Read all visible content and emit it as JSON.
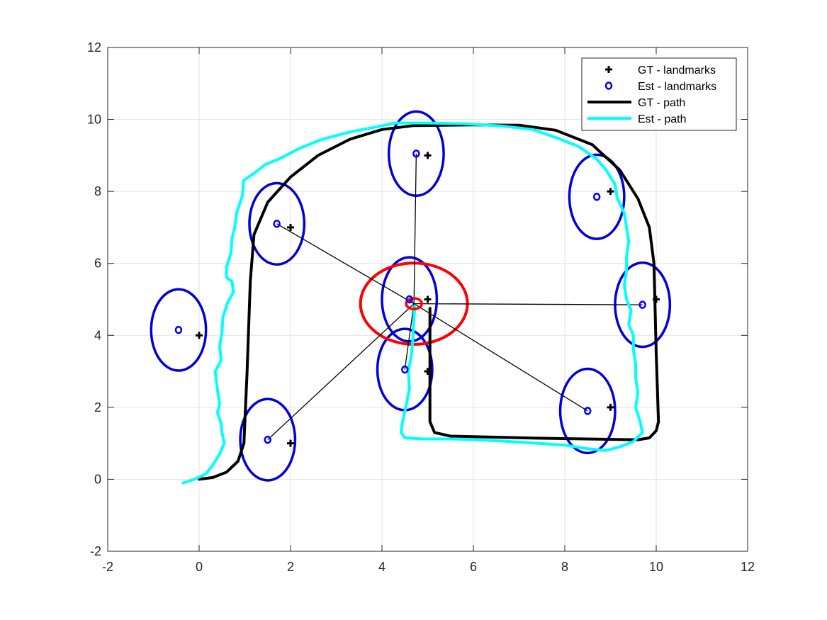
{
  "chart_data": {
    "type": "scatter",
    "title": "",
    "xlabel": "",
    "ylabel": "",
    "xlim": [
      -2,
      12
    ],
    "ylim": [
      -2,
      12
    ],
    "xticks": [
      -2,
      0,
      2,
      4,
      6,
      8,
      10,
      12
    ],
    "yticks": [
      -2,
      0,
      2,
      4,
      6,
      8,
      10,
      12
    ],
    "grid": true,
    "legend_position": "top-right",
    "colors": {
      "gt_landmark": "#000000",
      "est_landmark": "#0000ff",
      "gt_path": "#000000",
      "est_path": "#00ffff",
      "uncertainty": "#0000dd",
      "robot": "#ff0000",
      "observation": "#000000"
    },
    "legend": [
      {
        "label": "GT - landmarks",
        "marker": "plus",
        "color": "#000000"
      },
      {
        "label": "Est - landmarks",
        "marker": "circle",
        "color": "#0000ff"
      },
      {
        "label": "GT - path",
        "marker": "line",
        "color": "#000000"
      },
      {
        "label": "Est - path",
        "marker": "line",
        "color": "#00ffff"
      }
    ],
    "gt_landmarks": [
      {
        "x": 0,
        "y": 4
      },
      {
        "x": 2,
        "y": 1
      },
      {
        "x": 2,
        "y": 7
      },
      {
        "x": 5,
        "y": 9
      },
      {
        "x": 5,
        "y": 5
      },
      {
        "x": 5,
        "y": 3
      },
      {
        "x": 9,
        "y": 8
      },
      {
        "x": 10,
        "y": 5
      },
      {
        "x": 9,
        "y": 2
      }
    ],
    "est_landmarks": [
      {
        "x": -0.45,
        "y": 4.15,
        "rx": 1.2,
        "ry": 1.13
      },
      {
        "x": 1.5,
        "y": 1.1,
        "rx": 1.2,
        "ry": 1.13
      },
      {
        "x": 1.7,
        "y": 7.1,
        "rx": 1.2,
        "ry": 1.13
      },
      {
        "x": 4.75,
        "y": 9.05,
        "rx": 1.2,
        "ry": 1.17
      },
      {
        "x": 4.6,
        "y": 5.0,
        "rx": 1.2,
        "ry": 1.17
      },
      {
        "x": 4.5,
        "y": 3.05,
        "rx": 1.2,
        "ry": 1.13
      },
      {
        "x": 8.7,
        "y": 7.85,
        "rx": 1.2,
        "ry": 1.17
      },
      {
        "x": 9.7,
        "y": 4.85,
        "rx": 1.2,
        "ry": 1.17
      },
      {
        "x": 8.5,
        "y": 1.9,
        "rx": 1.2,
        "ry": 1.17
      }
    ],
    "robot": {
      "x": 4.7,
      "y": 4.88,
      "rx": 1.17,
      "ry": 1.13,
      "marker_rx": 0.17,
      "marker_ry": 0.15
    },
    "observations": [
      {
        "x": 4.75,
        "y": 9.05
      },
      {
        "x": 1.7,
        "y": 7.1
      },
      {
        "x": 1.5,
        "y": 1.1
      },
      {
        "x": 4.5,
        "y": 3.05
      },
      {
        "x": 9.7,
        "y": 4.85
      },
      {
        "x": 8.5,
        "y": 1.9
      },
      {
        "x": 4.6,
        "y": 5.0
      }
    ],
    "gt_path": [
      [
        0,
        0
      ],
      [
        0.3,
        0.05
      ],
      [
        0.6,
        0.2
      ],
      [
        0.85,
        0.5
      ],
      [
        0.98,
        1.0
      ],
      [
        1.05,
        3
      ],
      [
        1.12,
        5.5
      ],
      [
        1.2,
        6.8
      ],
      [
        1.5,
        7.7
      ],
      [
        2.0,
        8.4
      ],
      [
        2.6,
        9.0
      ],
      [
        3.3,
        9.45
      ],
      [
        4.0,
        9.72
      ],
      [
        4.7,
        9.83
      ],
      [
        6.0,
        9.85
      ],
      [
        7.0,
        9.84
      ],
      [
        7.8,
        9.7
      ],
      [
        8.6,
        9.3
      ],
      [
        9.2,
        8.6
      ],
      [
        9.6,
        7.8
      ],
      [
        9.85,
        7.0
      ],
      [
        9.95,
        6.0
      ],
      [
        10.0,
        3.5
      ],
      [
        10.05,
        1.6
      ],
      [
        10.0,
        1.35
      ],
      [
        9.85,
        1.15
      ],
      [
        9.6,
        1.1
      ],
      [
        7.5,
        1.14
      ],
      [
        5.5,
        1.2
      ],
      [
        5.15,
        1.3
      ],
      [
        5.05,
        1.6
      ],
      [
        5.05,
        3.0
      ],
      [
        5.05,
        4.75
      ]
    ],
    "est_path": [
      [
        -0.35,
        -0.1
      ],
      [
        -0.1,
        0.0
      ],
      [
        0.15,
        0.15
      ],
      [
        0.3,
        0.4
      ],
      [
        0.45,
        0.7
      ],
      [
        0.55,
        1.0
      ],
      [
        0.5,
        1.3
      ],
      [
        0.48,
        1.55
      ],
      [
        0.4,
        1.85
      ],
      [
        0.45,
        2.1
      ],
      [
        0.4,
        2.5
      ],
      [
        0.35,
        3.0
      ],
      [
        0.48,
        3.3
      ],
      [
        0.45,
        3.7
      ],
      [
        0.5,
        4.1
      ],
      [
        0.52,
        4.5
      ],
      [
        0.62,
        4.9
      ],
      [
        0.75,
        5.2
      ],
      [
        0.72,
        5.5
      ],
      [
        0.6,
        5.6
      ],
      [
        0.6,
        5.9
      ],
      [
        0.7,
        6.3
      ],
      [
        0.72,
        6.7
      ],
      [
        0.78,
        7.0
      ],
      [
        0.82,
        7.4
      ],
      [
        0.95,
        7.9
      ],
      [
        0.97,
        8.3
      ],
      [
        1.08,
        8.4
      ],
      [
        1.2,
        8.5
      ],
      [
        1.45,
        8.75
      ],
      [
        1.75,
        8.9
      ],
      [
        2.2,
        9.2
      ],
      [
        2.7,
        9.45
      ],
      [
        3.3,
        9.65
      ],
      [
        3.7,
        9.75
      ],
      [
        4.3,
        9.9
      ],
      [
        5.0,
        9.9
      ],
      [
        5.8,
        9.88
      ],
      [
        6.6,
        9.82
      ],
      [
        7.3,
        9.72
      ],
      [
        7.8,
        9.5
      ],
      [
        8.3,
        9.25
      ],
      [
        8.7,
        8.9
      ],
      [
        8.9,
        8.6
      ],
      [
        9.1,
        8.2
      ],
      [
        9.15,
        7.8
      ],
      [
        9.3,
        7.4
      ],
      [
        9.35,
        7.0
      ],
      [
        9.4,
        6.6
      ],
      [
        9.35,
        6.2
      ],
      [
        9.35,
        5.8
      ],
      [
        9.3,
        5.4
      ],
      [
        9.35,
        5.0
      ],
      [
        9.45,
        4.7
      ],
      [
        9.4,
        4.3
      ],
      [
        9.5,
        4.0
      ],
      [
        9.5,
        3.6
      ],
      [
        9.55,
        3.2
      ],
      [
        9.55,
        2.8
      ],
      [
        9.6,
        2.4
      ],
      [
        9.55,
        2.0
      ],
      [
        9.65,
        1.6
      ],
      [
        9.7,
        1.3
      ],
      [
        9.5,
        1.05
      ],
      [
        9.2,
        0.9
      ],
      [
        8.9,
        0.8
      ],
      [
        8.5,
        0.85
      ],
      [
        8.0,
        0.95
      ],
      [
        7.4,
        1.0
      ],
      [
        6.8,
        1.05
      ],
      [
        6.1,
        1.1
      ],
      [
        5.5,
        1.12
      ],
      [
        4.9,
        1.12
      ],
      [
        4.5,
        1.15
      ],
      [
        4.42,
        1.3
      ],
      [
        4.45,
        1.6
      ],
      [
        4.52,
        2.0
      ],
      [
        4.6,
        2.5
      ],
      [
        4.58,
        3.0
      ],
      [
        4.65,
        3.5
      ],
      [
        4.68,
        4.0
      ],
      [
        4.7,
        4.5
      ],
      [
        4.72,
        4.82
      ]
    ]
  }
}
